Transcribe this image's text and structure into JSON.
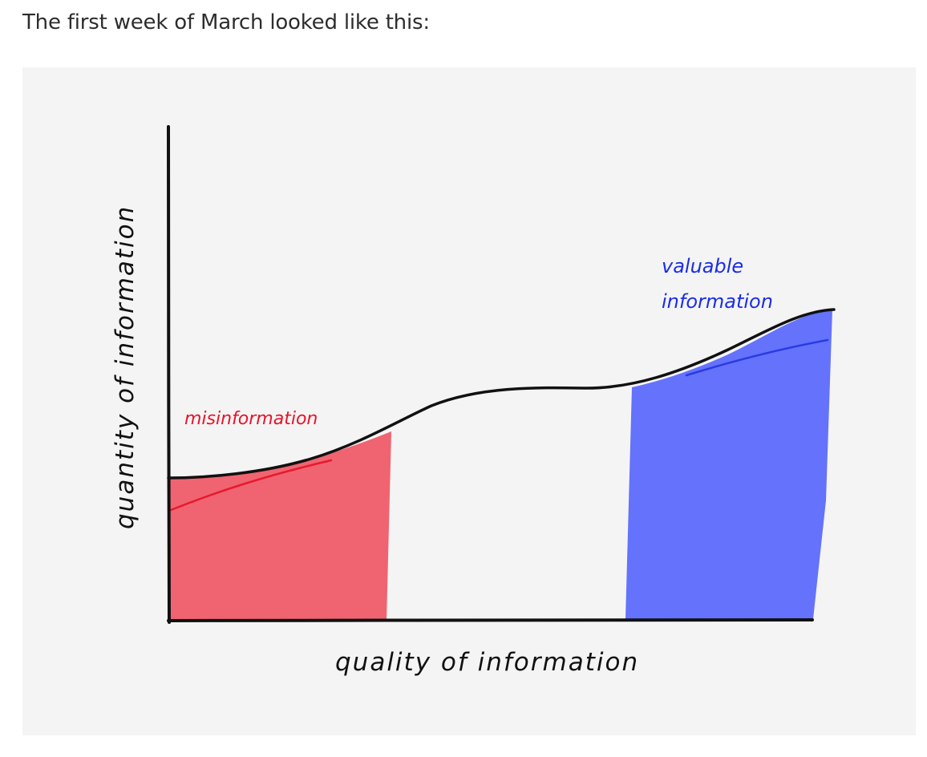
{
  "intro_text": "The first week of March looked like this:",
  "diagram": {
    "x_axis_label": "quality of information",
    "y_axis_label": "quantity of information",
    "regions": [
      {
        "label": "misinformation",
        "color": "#ef6470",
        "label_color": "#e8132a"
      },
      {
        "label_lines": [
          "valuable",
          "information"
        ],
        "color": "#6472fc",
        "label_color": "#1b2ce8"
      }
    ],
    "colors": {
      "background": "#f4f4f4",
      "ink": "#111111"
    }
  }
}
